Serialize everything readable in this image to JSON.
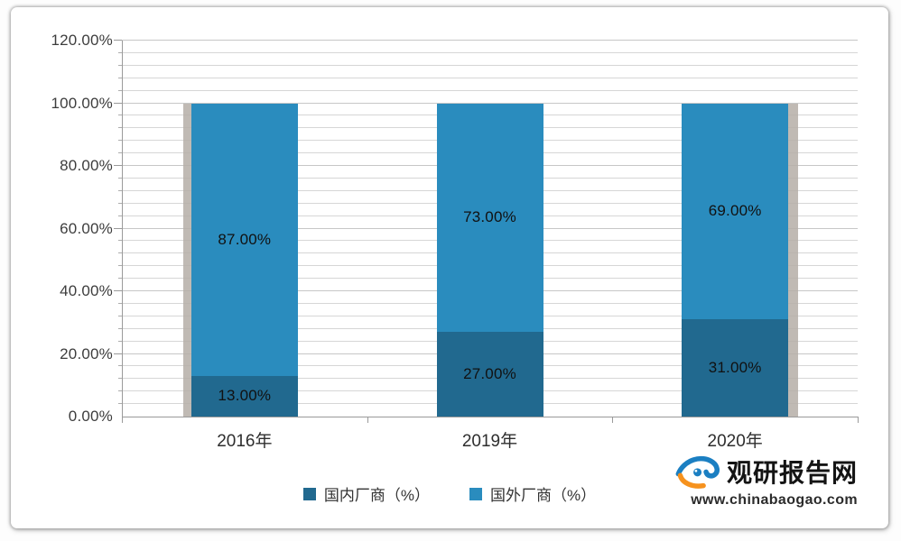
{
  "chart_data": {
    "type": "bar",
    "stacked": true,
    "title": "",
    "categories": [
      "2016年",
      "2019年",
      "2020年"
    ],
    "series": [
      {
        "name": "国内厂商（%）",
        "color": "#21698F",
        "values": [
          13,
          27,
          31
        ],
        "data_labels": [
          "13.00%",
          "27.00%",
          "31.00%"
        ]
      },
      {
        "name": "国外厂商（%）",
        "color": "#2A8CBE",
        "values": [
          87,
          73,
          69
        ],
        "data_labels": [
          "87.00%",
          "73.00%",
          "69.00%"
        ]
      }
    ],
    "ylim": [
      0,
      120
    ],
    "y_minor_unit": 4,
    "y_major_unit": 20,
    "y_ticks": [
      {
        "value": 0,
        "label": "0.00%"
      },
      {
        "value": 20,
        "label": "20.00%"
      },
      {
        "value": 40,
        "label": "40.00%"
      },
      {
        "value": 60,
        "label": "60.00%"
      },
      {
        "value": 80,
        "label": "80.00%"
      },
      {
        "value": 100,
        "label": "100.00%"
      },
      {
        "value": 120,
        "label": "120.00%"
      }
    ],
    "grid": true,
    "legend_position": "bottom"
  },
  "legend": {
    "items": [
      {
        "label": "国内厂商（%）",
        "color": "#21698F"
      },
      {
        "label": "国外厂商（%）",
        "color": "#2A8CBE"
      }
    ]
  },
  "watermark": {
    "brand": "观研报告网",
    "website": "www.chinabaogao.com"
  },
  "colors": {
    "grid": "#d6d6d6",
    "grid_major": "#c7c7c7",
    "axis": "#9a9a9a",
    "bar_shadow": "#b5aea7",
    "brand_blue": "#1B7FC2",
    "brand_orange": "#F6921E"
  }
}
